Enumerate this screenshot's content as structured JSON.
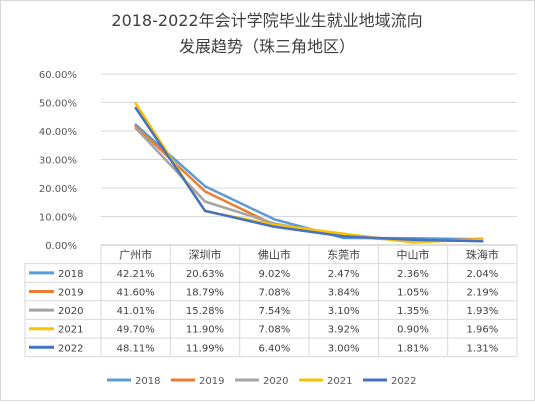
{
  "chart_data": {
    "type": "line",
    "title": [
      "2018-2022年会计学院毕业生就业地域流向",
      "发展趋势（珠三角地区）"
    ],
    "categories": [
      "广州市",
      "深圳市",
      "佛山市",
      "东莞市",
      "中山市",
      "珠海市"
    ],
    "ylim": [
      0,
      60
    ],
    "yticks": [
      "0.00%",
      "10.00%",
      "20.00%",
      "30.00%",
      "40.00%",
      "50.00%",
      "60.00%"
    ],
    "grid": true,
    "legend_position": "bottom",
    "series": [
      {
        "name": "2018",
        "color": "#5b9bd5",
        "values": [
          42.21,
          20.63,
          9.02,
          2.47,
          2.36,
          2.04
        ],
        "labels": [
          "42.21%",
          "20.63%",
          "9.02%",
          "2.47%",
          "2.36%",
          "2.04%"
        ]
      },
      {
        "name": "2019",
        "color": "#ed7d31",
        "values": [
          41.6,
          18.79,
          7.08,
          3.84,
          1.05,
          2.19
        ],
        "labels": [
          "41.60%",
          "18.79%",
          "7.08%",
          "3.84%",
          "1.05%",
          "2.19%"
        ]
      },
      {
        "name": "2020",
        "color": "#a5a5a5",
        "values": [
          41.01,
          15.28,
          7.54,
          3.1,
          1.35,
          1.93
        ],
        "labels": [
          "41.01%",
          "15.28%",
          "7.54%",
          "3.10%",
          "1.35%",
          "1.93%"
        ]
      },
      {
        "name": "2021",
        "color": "#ffc000",
        "values": [
          49.7,
          11.9,
          7.08,
          3.92,
          0.9,
          1.96
        ],
        "labels": [
          "49.70%",
          "11.90%",
          "7.08%",
          "3.92%",
          "0.90%",
          "1.96%"
        ]
      },
      {
        "name": "2022",
        "color": "#4472c4",
        "values": [
          48.11,
          11.99,
          6.4,
          3.0,
          1.81,
          1.31
        ],
        "labels": [
          "48.11%",
          "11.99%",
          "6.40%",
          "3.00%",
          "1.81%",
          "1.31%"
        ]
      }
    ]
  }
}
